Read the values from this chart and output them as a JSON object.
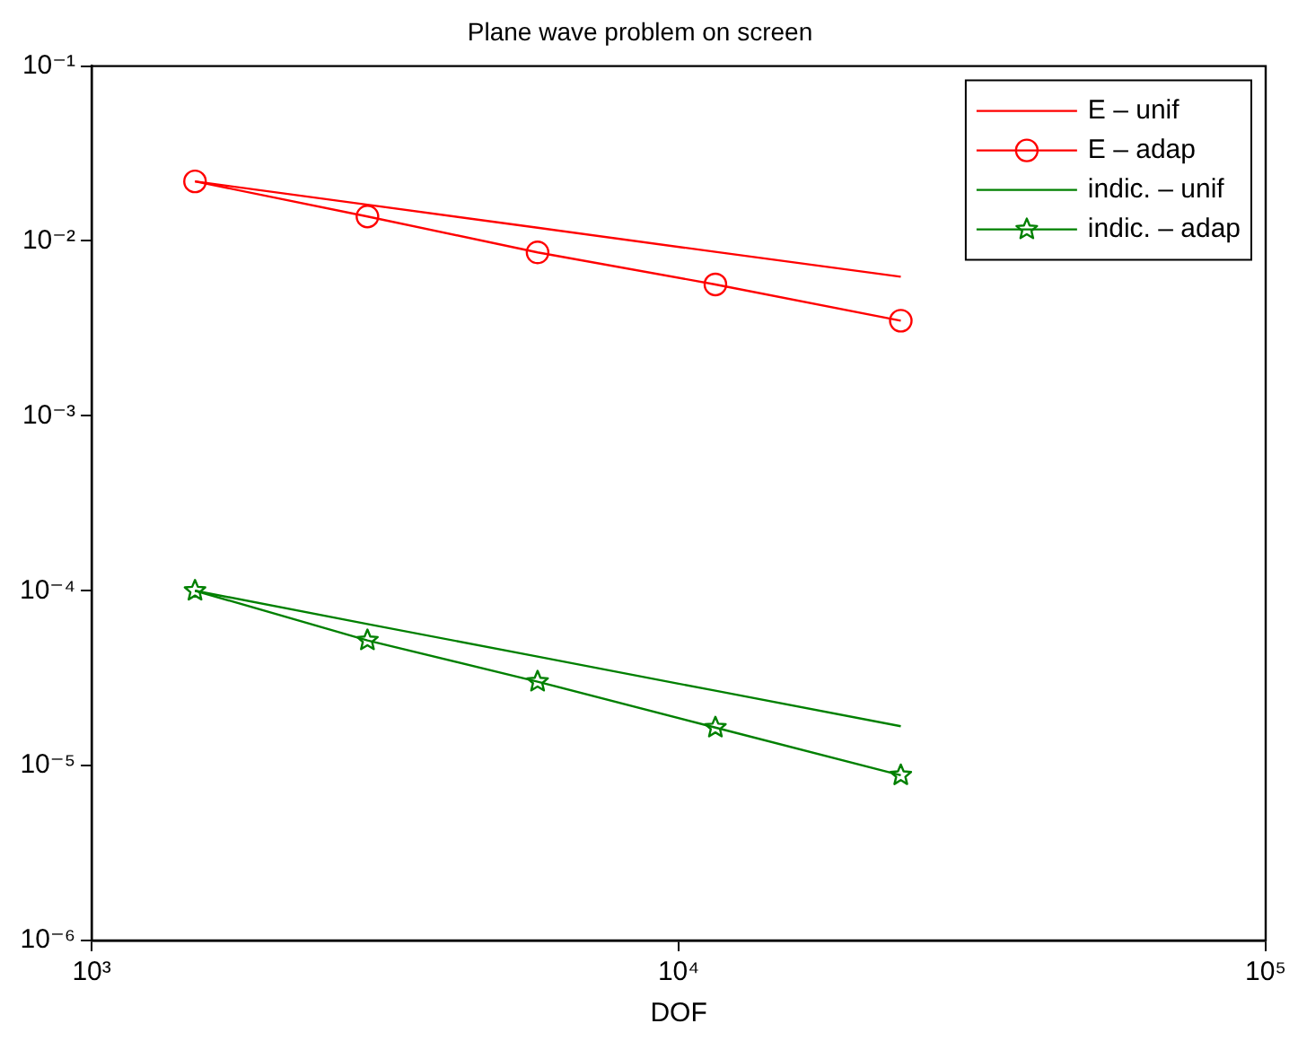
{
  "chart_data": {
    "type": "line",
    "title": "Plane wave problem on screen",
    "xlabel": "DOF",
    "log": "xy",
    "grid": false,
    "legend": "top right",
    "line_style": "solid",
    "xlim": [
      1000,
      100000
    ],
    "xticks": [
      {
        "value": 1000,
        "label": "10³"
      },
      {
        "value": 10000,
        "label": "10⁴"
      },
      {
        "value": 100000,
        "label": "10⁵"
      }
    ],
    "ylim": [
      1e-06,
      0.1
    ],
    "yticks": [
      {
        "value": 1e-06,
        "label": "10⁻⁶"
      },
      {
        "value": 1e-05,
        "label": "10⁻⁵"
      },
      {
        "value": 0.0001,
        "label": "10⁻⁴"
      },
      {
        "value": 0.001,
        "label": "10⁻³"
      },
      {
        "value": 0.01,
        "label": "10⁻²"
      },
      {
        "value": 0.1,
        "label": "10⁻¹"
      }
    ],
    "x": [
      1500,
      2950,
      5750,
      11550,
      23900
    ],
    "series": [
      {
        "name": "E – unif",
        "color": "#ff0000",
        "marker": "none",
        "values": [
          0.0219,
          0.0161,
          0.0119,
          0.00866,
          0.00624
        ]
      },
      {
        "name": "E – adap",
        "color": "#ff0000",
        "marker": "circle",
        "values": [
          0.0219,
          0.0138,
          0.0086,
          0.00564,
          0.0035
        ]
      },
      {
        "name": "indic. – unif",
        "color": "#008000",
        "marker": "none",
        "values": [
          0.0001,
          6.45e-05,
          4.2e-05,
          2.68e-05,
          1.68e-05
        ]
      },
      {
        "name": "indic. – adap",
        "color": "#008000",
        "marker": "star",
        "values": [
          0.0001,
          5.2e-05,
          3.02e-05,
          1.65e-05,
          8.8e-06
        ]
      }
    ]
  }
}
